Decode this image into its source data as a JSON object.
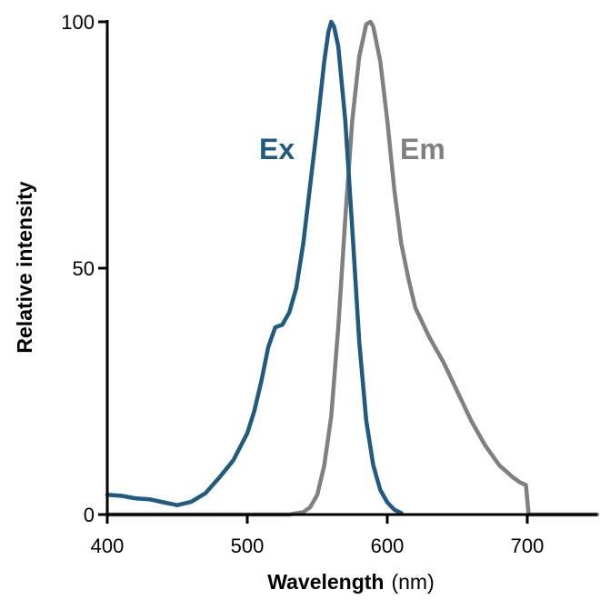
{
  "chart_data": {
    "type": "line",
    "xlabel": "Wavelength",
    "xlabel_unit": "(nm)",
    "ylabel": "Relative intensity",
    "xlim": [
      400,
      750
    ],
    "ylim": [
      0,
      100
    ],
    "xticks": [
      400,
      500,
      600,
      700
    ],
    "yticks": [
      0,
      50,
      100
    ],
    "grid": false,
    "series": [
      {
        "name": "Ex",
        "color": "#1f5a80",
        "x": [
          400,
          410,
          420,
          430,
          440,
          450,
          460,
          470,
          480,
          490,
          500,
          505,
          510,
          515,
          520,
          525,
          530,
          535,
          540,
          545,
          550,
          555,
          558,
          560,
          562,
          565,
          570,
          575,
          580,
          585,
          590,
          595,
          600,
          605,
          610
        ],
        "y": [
          4,
          3.8,
          3.3,
          3.1,
          2.5,
          1.9,
          2.6,
          4.3,
          7.5,
          11,
          16.5,
          21,
          27,
          34,
          38,
          38.5,
          41,
          46,
          55,
          67,
          79,
          92,
          98,
          100,
          99,
          95,
          80,
          58,
          35,
          19,
          10,
          5,
          2.5,
          1,
          0.3
        ]
      },
      {
        "name": "Em",
        "color": "#808080",
        "x": [
          400,
          530,
          540,
          545,
          550,
          555,
          560,
          565,
          570,
          575,
          580,
          585,
          588,
          590,
          595,
          600,
          605,
          610,
          615,
          620,
          630,
          640,
          650,
          660,
          670,
          680,
          690,
          695,
          699,
          701,
          750
        ],
        "y": [
          0,
          0,
          0.5,
          1.5,
          4,
          10,
          20,
          38,
          60,
          80,
          93,
          99.5,
          100,
          99,
          92,
          80,
          66,
          55,
          48,
          42,
          36,
          31,
          25,
          19,
          14,
          10,
          7.5,
          6.5,
          6,
          0,
          0
        ]
      }
    ]
  }
}
